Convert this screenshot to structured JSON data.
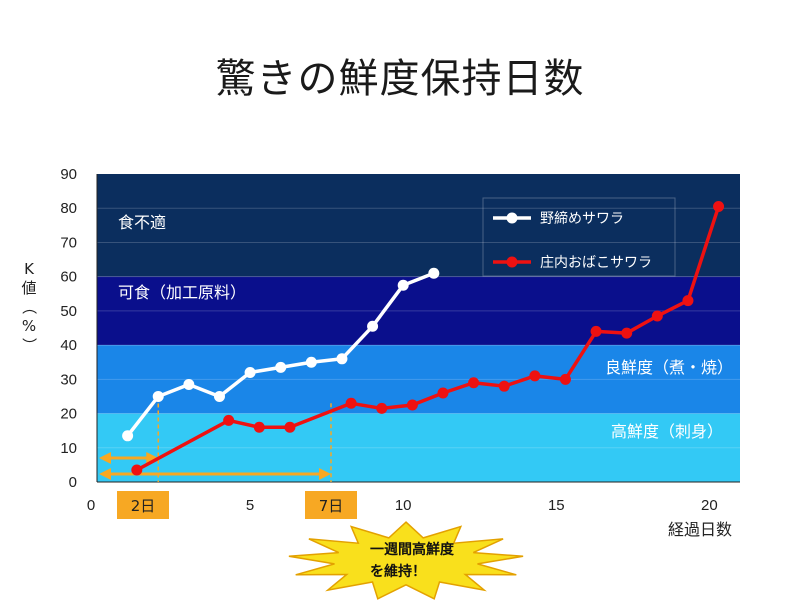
{
  "title": "驚きの鮮度保持日数",
  "chart_data": {
    "type": "line",
    "xlabel": "経過日数",
    "ylabel": "K値（%）",
    "xlim": [
      0,
      21
    ],
    "ylim": [
      0,
      90
    ],
    "x_ticks": [
      0,
      5,
      10,
      15,
      20
    ],
    "y_ticks": [
      0,
      10,
      20,
      30,
      40,
      50,
      60,
      70,
      80,
      90
    ],
    "grid": "horizontal",
    "legend_position": "top-right",
    "bands": [
      {
        "label": "食不適",
        "from": 60,
        "to": 90,
        "color": "#0b2e5e"
      },
      {
        "label": "可食（加工原料）",
        "from": 40,
        "to": 60,
        "color": "#0a0f8c"
      },
      {
        "label": "良鮮度（煮・焼）",
        "from": 20,
        "to": 40,
        "color": "#1a86e8"
      },
      {
        "label": "高鮮度（刺身）",
        "from": 0,
        "to": 20,
        "color": "#33c9f5"
      }
    ],
    "series": [
      {
        "name": "野締めサワラ",
        "color": "#ffffff",
        "x": [
          1,
          2,
          3,
          4,
          5,
          6,
          7,
          8,
          9,
          10,
          11
        ],
        "y": [
          13.5,
          25,
          28.5,
          25,
          32,
          33.5,
          35,
          36,
          45.5,
          57.5,
          61
        ]
      },
      {
        "name": "庄内おばこサワラ",
        "color": "#ee1111",
        "x": [
          1.3,
          4.3,
          5.3,
          6.3,
          8.3,
          9.3,
          10.3,
          11.3,
          12.3,
          13.3,
          14.3,
          15.3,
          16.3,
          17.3,
          18.3,
          19.3,
          20.3
        ],
        "y": [
          3.5,
          18,
          16,
          16,
          23,
          21.5,
          22.5,
          26,
          29,
          28,
          31,
          30,
          44,
          43.5,
          48.5,
          53,
          80.5
        ]
      }
    ],
    "annotations": {
      "marker_2": {
        "label": "2日",
        "x": 2
      },
      "marker_7": {
        "label": "7日",
        "x": 7.5
      },
      "callout": {
        "line1": "一週間高鮮度",
        "line2": "を維持！"
      },
      "highlight_color": "#f7a823",
      "callout_color": "#f9e01c"
    }
  }
}
